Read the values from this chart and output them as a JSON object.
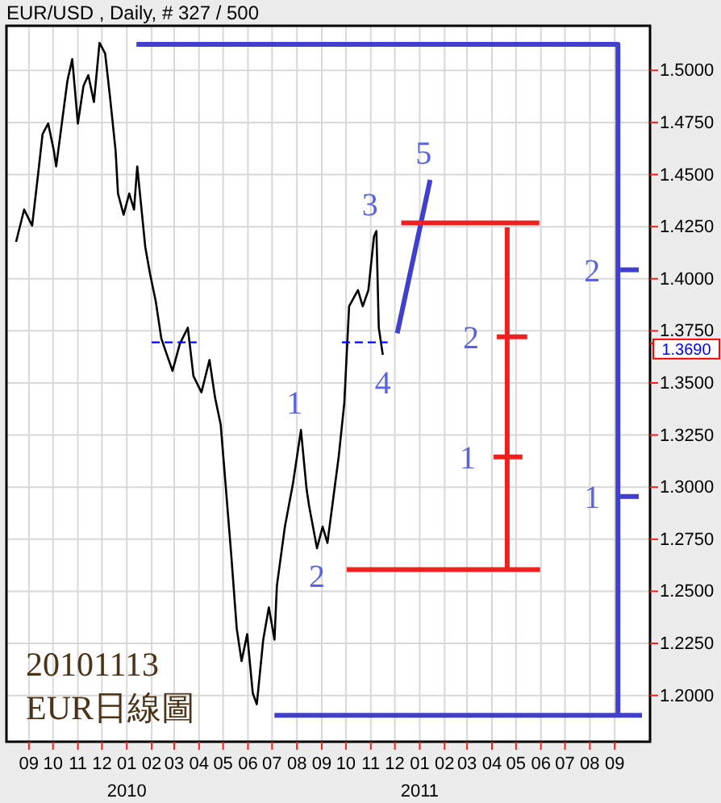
{
  "chart_data": {
    "type": "line",
    "title": "EUR/USD , Daily, # 327 / 500",
    "xlim": [
      "2009-08-04",
      "2011-10-15"
    ],
    "ylim": [
      1.1778,
      1.5214
    ],
    "xticks": [
      {
        "value": "2009-09",
        "label": "09"
      },
      {
        "value": "2009-10",
        "label": "10"
      },
      {
        "value": "2009-11",
        "label": "11"
      },
      {
        "value": "2009-12",
        "label": "12"
      },
      {
        "value": "2010-01",
        "label": "01"
      },
      {
        "value": "2010-02",
        "label": "02"
      },
      {
        "value": "2010-03",
        "label": "03"
      },
      {
        "value": "2010-04",
        "label": "04"
      },
      {
        "value": "2010-05",
        "label": "05"
      },
      {
        "value": "2010-06",
        "label": "06"
      },
      {
        "value": "2010-07",
        "label": "07"
      },
      {
        "value": "2010-08",
        "label": "08"
      },
      {
        "value": "2010-09",
        "label": "09"
      },
      {
        "value": "2010-10",
        "label": "10"
      },
      {
        "value": "2010-11",
        "label": "11"
      },
      {
        "value": "2010-12",
        "label": "12"
      },
      {
        "value": "2011-01",
        "label": "01"
      },
      {
        "value": "2011-02",
        "label": "02"
      },
      {
        "value": "2011-03",
        "label": "03"
      },
      {
        "value": "2011-04",
        "label": "04"
      },
      {
        "value": "2011-05",
        "label": "05"
      },
      {
        "value": "2011-06",
        "label": "06"
      },
      {
        "value": "2011-07",
        "label": "07"
      },
      {
        "value": "2011-08",
        "label": "08"
      },
      {
        "value": "2011-09",
        "label": "09"
      }
    ],
    "yticks": [
      {
        "value": 1.2,
        "label": "1.2000"
      },
      {
        "value": 1.225,
        "label": "1.2250"
      },
      {
        "value": 1.25,
        "label": "1.2500"
      },
      {
        "value": 1.275,
        "label": "1.2750"
      },
      {
        "value": 1.3,
        "label": "1.3000"
      },
      {
        "value": 1.325,
        "label": "1.3250"
      },
      {
        "value": 1.35,
        "label": "1.3500"
      },
      {
        "value": 1.369,
        "label": "1.3690"
      },
      {
        "value": 1.375,
        "label": "1.3750"
      },
      {
        "value": 1.4,
        "label": "1.4000"
      },
      {
        "value": 1.425,
        "label": "1.4250"
      },
      {
        "value": 1.45,
        "label": "1.4500"
      },
      {
        "value": 1.475,
        "label": "1.4750"
      },
      {
        "value": 1.5,
        "label": "1.5000"
      }
    ],
    "grid": true,
    "marker": "none",
    "series": [
      {
        "color": "#000000",
        "x": [
          "2009-08-16",
          "2009-08-26",
          "2009-09-05",
          "2009-09-12",
          "2009-09-18",
          "2009-09-25",
          "2009-10-02",
          "2009-10-05",
          "2009-10-12",
          "2009-10-19",
          "2009-10-25",
          "2009-11-01",
          "2009-11-08",
          "2009-11-14",
          "2009-11-21",
          "2009-11-28",
          "2009-12-05",
          "2009-12-11",
          "2009-12-18",
          "2009-12-21",
          "2009-12-28",
          "2010-01-04",
          "2010-01-10",
          "2010-01-14",
          "2010-01-18",
          "2010-01-24",
          "2010-01-30",
          "2010-02-06",
          "2010-02-13",
          "2010-02-20",
          "2010-02-27",
          "2010-03-08",
          "2010-03-18",
          "2010-03-25",
          "2010-04-04",
          "2010-04-14",
          "2010-04-21",
          "2010-04-28",
          "2010-05-04",
          "2010-05-11",
          "2010-05-18",
          "2010-05-24",
          "2010-05-31",
          "2010-06-07",
          "2010-06-12",
          "2010-06-20",
          "2010-06-27",
          "2010-07-04",
          "2010-07-07",
          "2010-07-17",
          "2010-07-27",
          "2010-08-06",
          "2010-08-13",
          "2010-08-16",
          "2010-08-26",
          "2010-09-02",
          "2010-09-08",
          "2010-09-15",
          "2010-09-22",
          "2010-09-29",
          "2010-10-02",
          "2010-10-05",
          "2010-10-16",
          "2010-10-22",
          "2010-10-29",
          "2010-11-05",
          "2010-11-08",
          "2010-11-11",
          "2010-11-16"
        ],
        "values": [
          1.4177,
          1.4332,
          1.4255,
          1.4487,
          1.4694,
          1.4745,
          1.4616,
          1.4539,
          1.4745,
          1.4951,
          1.5054,
          1.4745,
          1.4926,
          1.4977,
          1.4848,
          1.5132,
          1.5081,
          1.4874,
          1.4616,
          1.4409,
          1.4307,
          1.4409,
          1.4332,
          1.4539,
          1.4384,
          1.4152,
          1.4022,
          1.3893,
          1.3713,
          1.3635,
          1.3558,
          1.3687,
          1.3765,
          1.3533,
          1.3455,
          1.361,
          1.3429,
          1.33,
          1.3016,
          1.2681,
          1.232,
          1.2165,
          1.2294,
          1.201,
          1.1958,
          1.2268,
          1.2423,
          1.2268,
          1.2526,
          1.281,
          1.3016,
          1.3274,
          1.2991,
          1.2913,
          1.2707,
          1.281,
          1.2732,
          1.2939,
          1.3145,
          1.3403,
          1.3635,
          1.3868,
          1.3945,
          1.3868,
          1.3945,
          1.4203,
          1.4229,
          1.3765,
          1.3635
        ]
      },
      {
        "color": "#4040cc",
        "x": [
          "2010-01-13",
          "2011-09-05",
          "2011-09-05"
        ],
        "values": [
          1.5125,
          1.5125,
          1.1905
        ]
      },
      {
        "color": "#4040cc",
        "x": [
          "2010-07-04",
          "2011-10-05"
        ],
        "values": [
          1.1905,
          1.1905
        ]
      },
      {
        "color": "#4040cc",
        "x": [
          "2011-09-05",
          "2011-10-01"
        ],
        "values": [
          1.4043,
          1.4043
        ]
      },
      {
        "color": "#4040cc",
        "x": [
          "2011-09-05",
          "2011-10-01"
        ],
        "values": [
          1.2955,
          1.2955
        ]
      },
      {
        "color": "#4040cc",
        "x": [
          "2010-12-04",
          "2011-01-14"
        ],
        "values": [
          1.3738,
          1.4474
        ]
      },
      {
        "color": "#0000ff",
        "line_style": "dashed",
        "x": [
          "2010-02-01",
          "2010-03-29"
        ],
        "values": [
          1.3695,
          1.3695
        ]
      },
      {
        "color": "#0000ff",
        "line_style": "dashed",
        "x": [
          "2010-09-26",
          "2010-11-22"
        ],
        "values": [
          1.3695,
          1.3695
        ]
      },
      {
        "color": "#ee2020",
        "x": [
          "2010-12-09",
          "2011-05-30"
        ],
        "values": [
          1.4268,
          1.4268
        ]
      },
      {
        "color": "#ee2020",
        "x": [
          "2010-10-02",
          "2011-05-31"
        ],
        "values": [
          1.2604,
          1.2604
        ]
      },
      {
        "color": "#ee2020",
        "x": [
          "2011-04-20",
          "2011-04-20"
        ],
        "values": [
          1.4247,
          1.2604
        ]
      },
      {
        "color": "#ee2020",
        "x": [
          "2011-04-03",
          "2011-05-09"
        ],
        "values": [
          1.3145,
          1.3145
        ]
      },
      {
        "color": "#ee2020",
        "x": [
          "2011-04-07",
          "2011-05-15"
        ],
        "values": [
          1.3721,
          1.3721
        ]
      }
    ],
    "annotations": [
      "20101113",
      "EUR日線圖",
      "2010",
      "2011",
      {
        "text": "1",
        "x": "2010-08-06",
        "y": 1.3274
      },
      {
        "text": "2",
        "x": "2010-08-26",
        "y": 1.2707
      },
      {
        "text": "3",
        "x": "2010-11-08",
        "y": 1.4229
      },
      {
        "text": "4",
        "x": "2010-11-16",
        "y": 1.3635
      },
      {
        "text": "5",
        "x": "2011-01-14",
        "y": 1.4474
      },
      {
        "text": "2",
        "x": "2011-04-07",
        "y": 1.3721
      },
      {
        "text": "1",
        "x": "2011-04-03",
        "y": 1.3145
      },
      {
        "text": "2",
        "x": "2011-09-05",
        "y": 1.4043
      },
      {
        "text": "1",
        "x": "2011-09-05",
        "y": 1.2955
      }
    ]
  }
}
